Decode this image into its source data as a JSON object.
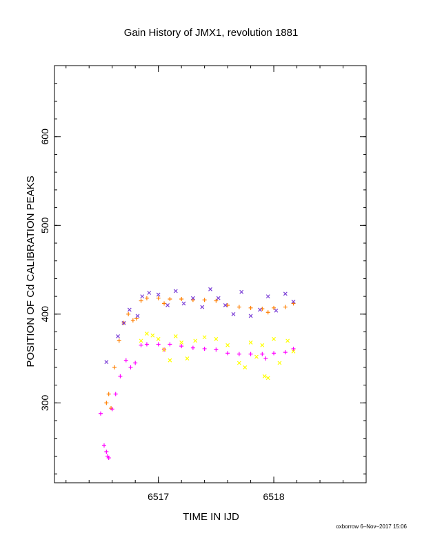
{
  "chart_data": {
    "type": "scatter",
    "title": "Gain History of JMX1, revolution 1881",
    "xlabel": "TIME IN IJD",
    "ylabel": "POSITION OF Cd CALIBRATION PEAKS",
    "xlim": [
      6516.1,
      6518.8
    ],
    "ylim": [
      210,
      680
    ],
    "xticks": [
      6517,
      6518
    ],
    "yticks": [
      300,
      400,
      500,
      600
    ],
    "grid": false,
    "legend": "none",
    "series": [
      {
        "color": "#ff7f00",
        "marker": "plus",
        "x": [
          6516.55,
          6516.57,
          6516.59,
          6516.62,
          6516.66,
          6516.7,
          6516.74,
          6516.78,
          6516.81,
          6516.85,
          6516.9,
          6517.0,
          6517.05,
          6517.1,
          6517.2,
          6517.3,
          6517.4,
          6517.5,
          6517.6,
          6517.7,
          6517.8,
          6517.9,
          6517.95,
          6518.0,
          6518.1,
          6518.17
        ],
        "y": [
          300,
          310,
          294,
          340,
          370,
          390,
          400,
          393,
          395,
          415,
          418,
          418,
          412,
          417,
          417,
          416,
          416,
          415,
          410,
          408,
          407,
          406,
          402,
          407,
          408,
          412
        ]
      },
      {
        "color": "#7b3fd6",
        "marker": "cross",
        "x": [
          6516.55,
          6516.65,
          6516.7,
          6516.75,
          6516.82,
          6516.86,
          6516.92,
          6517.0,
          6517.08,
          6517.15,
          6517.22,
          6517.3,
          6517.38,
          6517.45,
          6517.52,
          6517.58,
          6517.65,
          6517.72,
          6517.8,
          6517.88,
          6517.95,
          6518.02,
          6518.1,
          6518.17
        ],
        "y": [
          346,
          375,
          390,
          405,
          398,
          420,
          424,
          422,
          410,
          426,
          412,
          418,
          408,
          428,
          418,
          410,
          400,
          425,
          398,
          405,
          420,
          404,
          423,
          414
        ]
      },
      {
        "color": "#ff00ff",
        "marker": "plus",
        "x": [
          6516.5,
          6516.53,
          6516.55,
          6516.56,
          6516.57,
          6516.6,
          6516.63,
          6516.67,
          6516.72,
          6516.76,
          6516.8,
          6516.85,
          6516.9,
          6517.0,
          6517.05,
          6517.1,
          6517.2,
          6517.3,
          6517.4,
          6517.5,
          6517.6,
          6517.7,
          6517.8,
          6517.9,
          6517.93,
          6518.0,
          6518.1,
          6518.17
        ],
        "y": [
          288,
          252,
          245,
          240,
          238,
          293,
          310,
          330,
          348,
          340,
          345,
          365,
          366,
          366,
          360,
          366,
          364,
          362,
          361,
          360,
          356,
          355,
          355,
          355,
          350,
          356,
          357,
          361
        ]
      },
      {
        "color": "#ffff00",
        "marker": "cross",
        "x": [
          6516.85,
          6516.9,
          6516.95,
          6517.0,
          6517.05,
          6517.1,
          6517.15,
          6517.2,
          6517.25,
          6517.32,
          6517.4,
          6517.5,
          6517.6,
          6517.7,
          6517.75,
          6517.8,
          6517.85,
          6517.9,
          6517.92,
          6517.95,
          6518.0,
          6518.05,
          6518.12,
          6518.17
        ],
        "y": [
          370,
          378,
          376,
          372,
          360,
          348,
          375,
          368,
          350,
          370,
          374,
          372,
          365,
          345,
          340,
          368,
          352,
          365,
          330,
          328,
          372,
          345,
          370,
          358
        ]
      }
    ]
  },
  "footer": {
    "credit": "oxborrow  6–Nov–2017 15:06"
  }
}
